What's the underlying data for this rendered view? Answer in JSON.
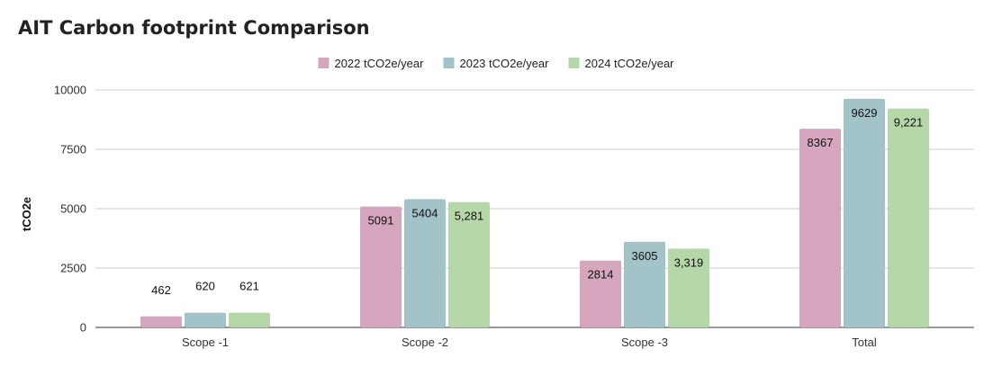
{
  "chart_data": {
    "type": "bar",
    "title": "AIT Carbon footprint Comparison",
    "xlabel": "",
    "ylabel": "tCO2e",
    "ylim": [
      0,
      10000
    ],
    "yticks": [
      0,
      2500,
      5000,
      7500,
      10000
    ],
    "ytick_labels": [
      "0",
      "2500",
      "5000",
      "7500",
      "10000"
    ],
    "grid": true,
    "legend_position": "top-center",
    "categories": [
      "Scope -1",
      "Scope -2",
      "Scope -3",
      "Total"
    ],
    "series": [
      {
        "name": "2022 tCO2e/year",
        "color": "#d5a6bd",
        "values": [
          462,
          5091,
          2814,
          8367
        ],
        "labels": [
          "462",
          "5091",
          "2814",
          "8367"
        ]
      },
      {
        "name": "2023 tCO2e/year",
        "color": "#a2c4c9",
        "values": [
          620,
          5404,
          3605,
          9629
        ],
        "labels": [
          "620",
          "5404",
          "3605",
          "9629"
        ]
      },
      {
        "name": "2024 tCO2e/year",
        "color": "#b6d7a8",
        "values": [
          621,
          5281,
          3319,
          9221
        ],
        "labels": [
          "621",
          "5,281",
          "3,319",
          "9,221"
        ]
      }
    ]
  }
}
